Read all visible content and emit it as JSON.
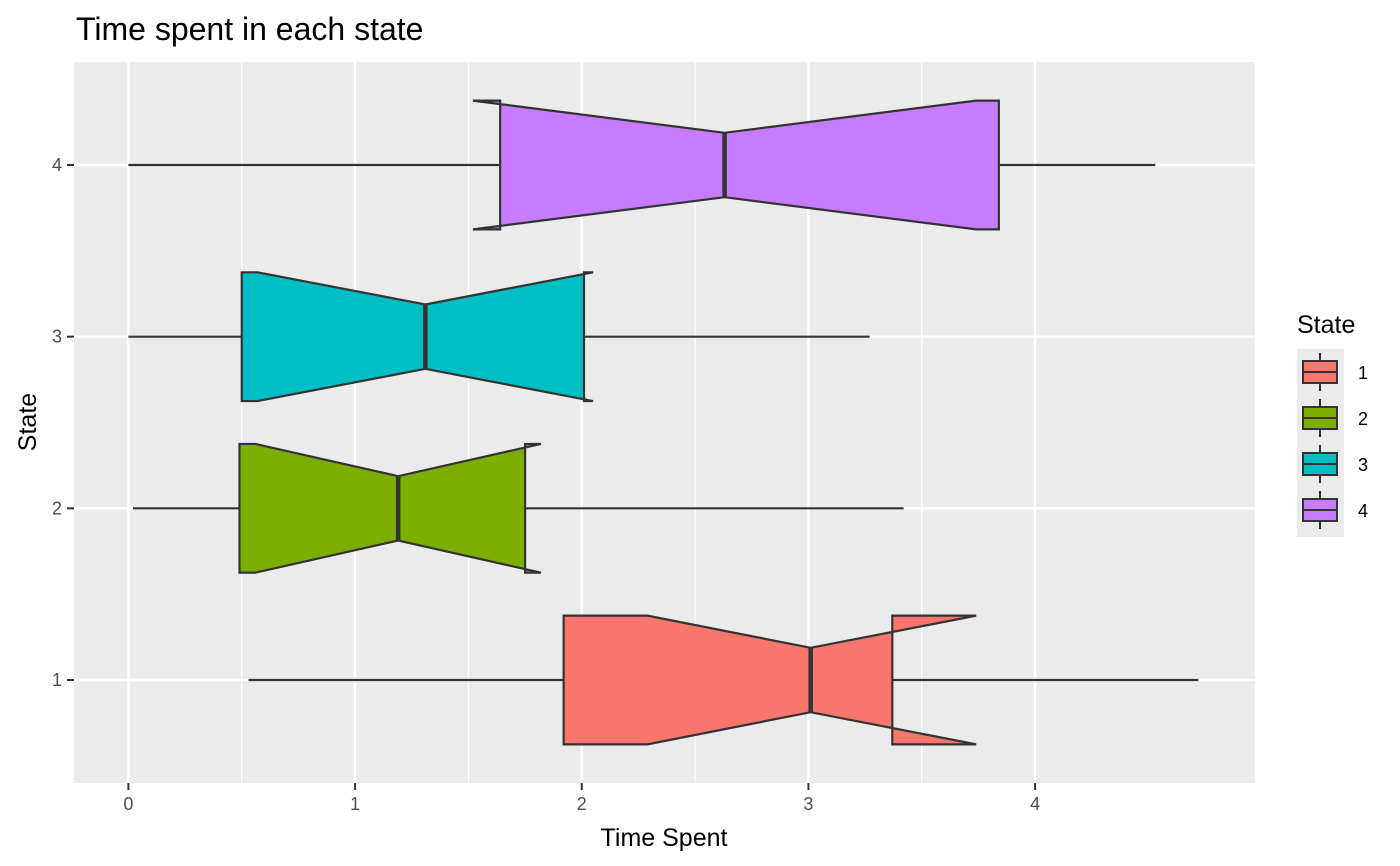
{
  "chart_data": {
    "type": "boxplot",
    "orientation": "horizontal",
    "notched": true,
    "title": "Time spent in each state",
    "xlabel": "Time Spent",
    "ylabel": "State",
    "xlim": [
      -0.24,
      4.97
    ],
    "x_ticks": [
      0,
      1,
      2,
      3,
      4
    ],
    "x_tick_labels": [
      "0",
      "1",
      "2",
      "3",
      "4"
    ],
    "categories": [
      "1",
      "2",
      "3",
      "4"
    ],
    "grid": true,
    "legend": {
      "title": "State",
      "position": "right",
      "labels": [
        "1",
        "2",
        "3",
        "4"
      ]
    },
    "series": [
      {
        "category": "1",
        "color": "#F8766D",
        "whisker_low": 0.53,
        "q1": 1.92,
        "notch_low": 2.29,
        "median": 3.01,
        "notch_high": 3.74,
        "q3": 3.37,
        "whisker_high": 4.72
      },
      {
        "category": "2",
        "color": "#7CAE00",
        "whisker_low": 0.02,
        "q1": 0.49,
        "notch_low": 0.56,
        "median": 1.19,
        "notch_high": 1.82,
        "q3": 1.75,
        "whisker_high": 3.42
      },
      {
        "category": "3",
        "color": "#00BFC4",
        "whisker_low": 0.0,
        "q1": 0.5,
        "notch_low": 0.57,
        "median": 1.31,
        "notch_high": 2.05,
        "q3": 2.01,
        "whisker_high": 3.27
      },
      {
        "category": "4",
        "color": "#C77CFF",
        "whisker_low": 0.0,
        "q1": 1.64,
        "notch_low": 1.52,
        "median": 2.63,
        "notch_high": 3.74,
        "q3": 3.84,
        "whisker_high": 4.53
      }
    ]
  }
}
